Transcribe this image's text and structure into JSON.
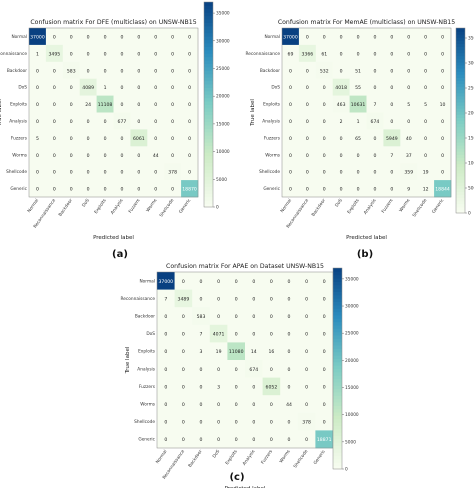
{
  "chart_data": [
    {
      "type": "heatmap",
      "panel_label": "(a)",
      "title": "Confusion matrix For DFE (multiclass) on UNSW-NB15",
      "xlabel": "Predicted label",
      "ylabel": "True label",
      "categories": [
        "Normal",
        "Reconnaissance",
        "Backdoor",
        "DoS",
        "Exploits",
        "Analysis",
        "Fuzzers",
        "Worms",
        "Shellcode",
        "Generic"
      ],
      "matrix": [
        [
          37000,
          0,
          0,
          0,
          0,
          0,
          0,
          0,
          0,
          0
        ],
        [
          1,
          3495,
          0,
          0,
          0,
          0,
          0,
          0,
          0,
          0
        ],
        [
          0,
          0,
          583,
          0,
          0,
          0,
          0,
          0,
          0,
          0
        ],
        [
          0,
          0,
          0,
          4089,
          1,
          0,
          0,
          0,
          0,
          0
        ],
        [
          0,
          0,
          0,
          24,
          11108,
          0,
          0,
          0,
          0,
          0
        ],
        [
          0,
          0,
          0,
          0,
          0,
          677,
          0,
          0,
          0,
          0
        ],
        [
          5,
          0,
          0,
          0,
          0,
          0,
          6061,
          0,
          0,
          0
        ],
        [
          0,
          0,
          0,
          0,
          0,
          0,
          0,
          44,
          0,
          0
        ],
        [
          0,
          0,
          0,
          0,
          0,
          0,
          0,
          0,
          378,
          0
        ],
        [
          0,
          0,
          0,
          0,
          0,
          0,
          0,
          0,
          0,
          18870
        ]
      ],
      "colorbar_ticks": [
        0,
        5000,
        10000,
        15000,
        20000,
        25000,
        30000,
        35000
      ],
      "vmax": 37000
    },
    {
      "type": "heatmap",
      "panel_label": "(b)",
      "title": "Confusion matrix For MemAE (multiclass) on UNSW-NB15",
      "xlabel": "Predicted label",
      "ylabel": "True label",
      "categories": [
        "Normal",
        "Reconnaissance",
        "Backdoor",
        "DoS",
        "Exploits",
        "Analysis",
        "Fuzzers",
        "Worms",
        "Shellcode",
        "Generic"
      ],
      "matrix": [
        [
          37000,
          0,
          0,
          0,
          0,
          0,
          0,
          0,
          0,
          0
        ],
        [
          69,
          3366,
          61,
          0,
          0,
          0,
          0,
          0,
          0,
          0
        ],
        [
          0,
          0,
          532,
          0,
          51,
          0,
          0,
          0,
          0,
          0
        ],
        [
          0,
          0,
          0,
          4018,
          55,
          0,
          0,
          0,
          0,
          0
        ],
        [
          0,
          0,
          0,
          463,
          10631,
          7,
          0,
          5,
          5,
          10
        ],
        [
          0,
          0,
          0,
          2,
          1,
          674,
          0,
          0,
          0,
          0
        ],
        [
          0,
          0,
          0,
          0,
          65,
          0,
          5949,
          40,
          0,
          0
        ],
        [
          0,
          0,
          0,
          0,
          0,
          0,
          7,
          37,
          0,
          0
        ],
        [
          0,
          0,
          0,
          0,
          0,
          0,
          0,
          359,
          19,
          0
        ],
        [
          0,
          0,
          0,
          0,
          0,
          0,
          0,
          9,
          12,
          18844
        ]
      ],
      "colorbar_ticks": [
        0,
        5000,
        10000,
        15000,
        20000,
        25000,
        30000,
        35000
      ],
      "vmax": 37000
    },
    {
      "type": "heatmap",
      "panel_label": "(c)",
      "title": "Confusion matrix For APAE on Dataset UNSW-NB15",
      "xlabel": "Predicted label",
      "ylabel": "True label",
      "categories": [
        "Normal",
        "Reconnaissance",
        "Backdoor",
        "DoS",
        "Exploits",
        "Analysis",
        "Fuzzers",
        "Worms",
        "Shellcode",
        "Generic"
      ],
      "matrix": [
        [
          37000,
          0,
          0,
          0,
          0,
          0,
          0,
          0,
          0,
          0
        ],
        [
          7,
          3489,
          0,
          0,
          0,
          0,
          0,
          0,
          0,
          0
        ],
        [
          0,
          0,
          583,
          0,
          0,
          0,
          0,
          0,
          0,
          0
        ],
        [
          0,
          0,
          7,
          4071,
          0,
          0,
          0,
          0,
          0,
          0
        ],
        [
          0,
          0,
          3,
          19,
          11080,
          14,
          16,
          0,
          0,
          0
        ],
        [
          0,
          0,
          0,
          0,
          0,
          674,
          0,
          0,
          0,
          0
        ],
        [
          0,
          0,
          0,
          3,
          0,
          0,
          6052,
          0,
          0,
          0
        ],
        [
          0,
          0,
          0,
          0,
          0,
          0,
          0,
          44,
          0,
          0
        ],
        [
          0,
          0,
          0,
          0,
          0,
          0,
          0,
          0,
          378,
          0
        ],
        [
          0,
          0,
          0,
          0,
          0,
          0,
          0,
          0,
          0,
          18871
        ]
      ],
      "colorbar_ticks": [
        0,
        5000,
        10000,
        15000,
        20000,
        25000,
        30000,
        35000
      ],
      "vmax": 37000
    }
  ],
  "colors": {
    "low": "#f7fcf0",
    "mid": "#7bccc4",
    "high": "#084081"
  }
}
